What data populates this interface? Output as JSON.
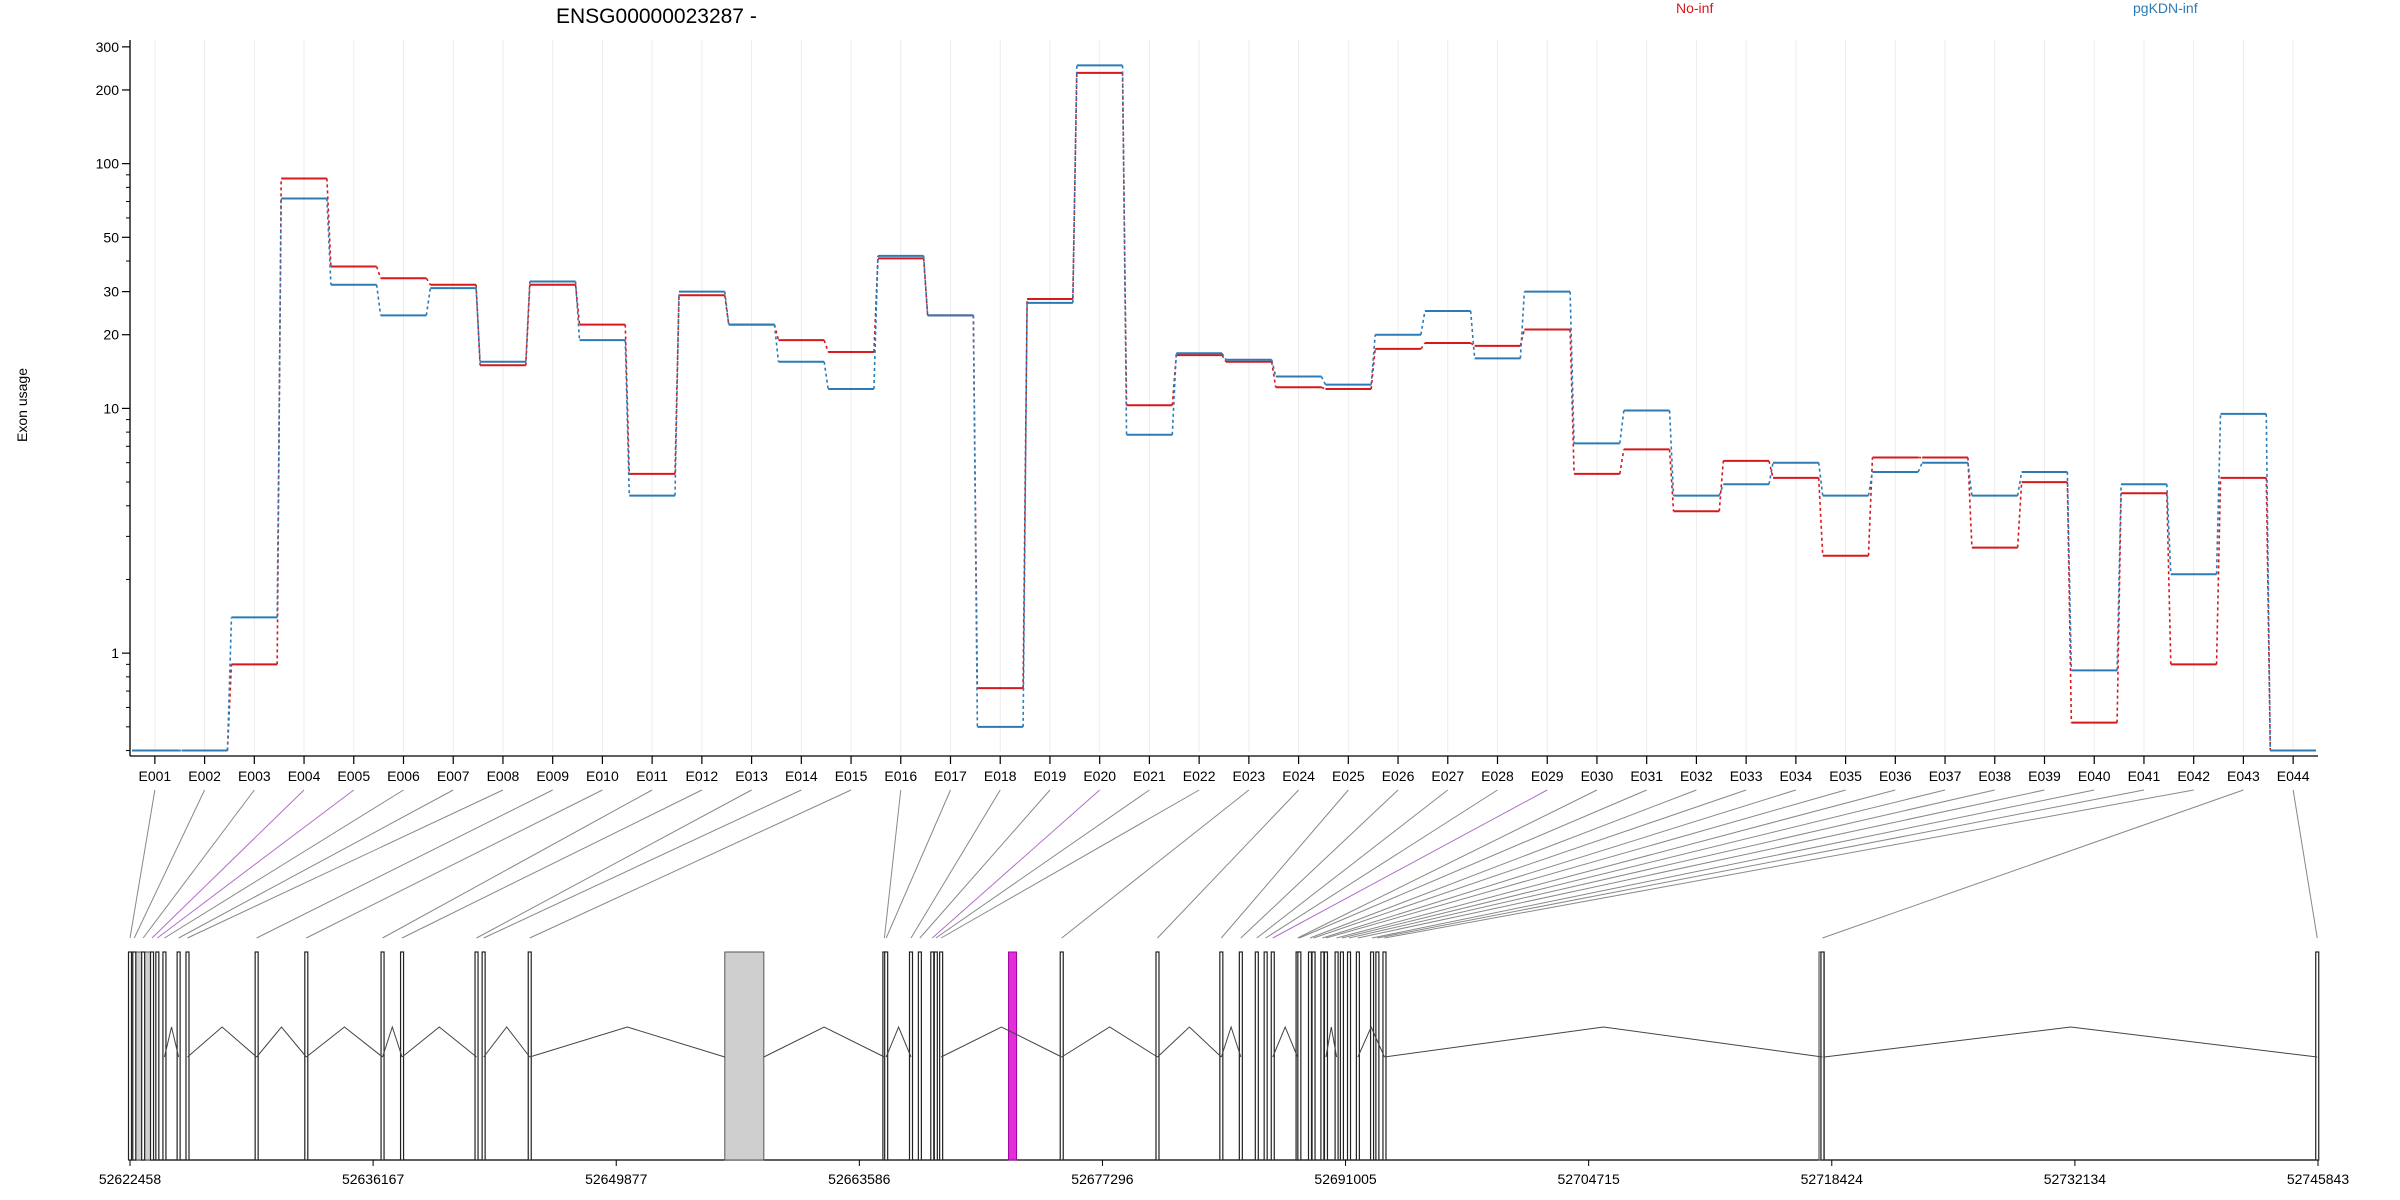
{
  "chart_data": {
    "type": "line",
    "title": "ENSG00000023287 -",
    "ylabel": "Exon usage",
    "xlabel": "",
    "y_scale": "log",
    "ylim": [
      0.38,
      320
    ],
    "y_ticks": [
      1,
      10,
      20,
      30,
      50,
      100,
      200,
      300
    ],
    "legend_placement": "top",
    "grid": "vertical, light",
    "categories": [
      "E001",
      "E002",
      "E003",
      "E004",
      "E005",
      "E006",
      "E007",
      "E008",
      "E009",
      "E010",
      "E011",
      "E012",
      "E013",
      "E014",
      "E015",
      "E016",
      "E017",
      "E018",
      "E019",
      "E020",
      "E021",
      "E022",
      "E023",
      "E024",
      "E025",
      "E026",
      "E027",
      "E028",
      "E029",
      "E030",
      "E031",
      "E032",
      "E033",
      "E034",
      "E035",
      "E036",
      "E037",
      "E038",
      "E039",
      "E040",
      "E041",
      "E042",
      "E043",
      "E044"
    ],
    "series": [
      {
        "name": "No-inf",
        "color": "#d7191c",
        "values": [
          0.4,
          0.4,
          0.9,
          87,
          38,
          34,
          32,
          15,
          32,
          22,
          5.4,
          29,
          22,
          19,
          17,
          41,
          24,
          0.72,
          28,
          235,
          10.3,
          16.5,
          15.5,
          12.2,
          12,
          17.5,
          18.5,
          18,
          21,
          5.4,
          6.8,
          3.8,
          6.1,
          5.2,
          2.5,
          6.3,
          6.3,
          2.7,
          5,
          0.52,
          4.5,
          0.9,
          5.2,
          0.4
        ]
      },
      {
        "name": "pgKDN-inf",
        "color": "#2c7bb6",
        "values": [
          0.4,
          0.4,
          1.4,
          72,
          32,
          24,
          31,
          15.5,
          33,
          19,
          4.4,
          30,
          22,
          15.5,
          12,
          42,
          24,
          0.5,
          27,
          252,
          7.8,
          16.8,
          15.8,
          13.5,
          12.5,
          20,
          25,
          16,
          30,
          7.2,
          9.8,
          4.4,
          4.9,
          6,
          4.4,
          5.5,
          6,
          4.4,
          5.5,
          0.85,
          4.9,
          2.1,
          9.5,
          0.4
        ]
      }
    ],
    "gene_track": {
      "start": 52622458,
      "end": 52745843,
      "tick_labels": [
        "52622458",
        "52636167",
        "52649877",
        "52663586",
        "52677296",
        "52691005",
        "52704715",
        "52718424",
        "52732134",
        "52745843"
      ]
    }
  }
}
